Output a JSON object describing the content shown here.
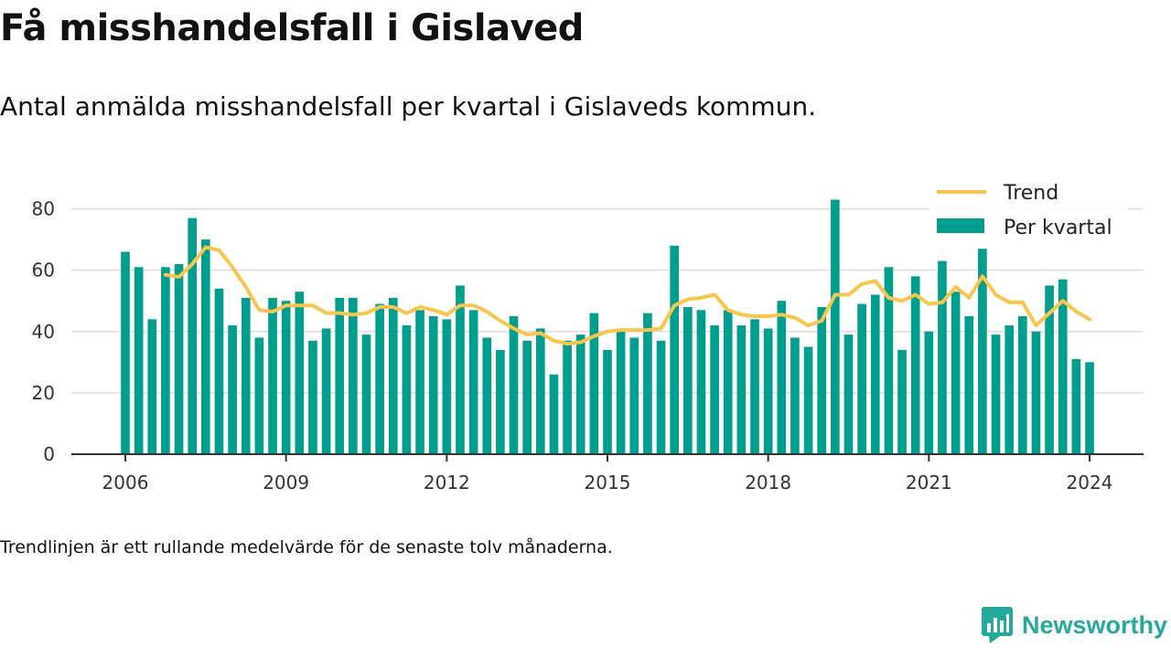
{
  "title": "Få misshandelsfall i Gislaved",
  "subtitle": "Antal anmälda misshandelsfall per kvartal i Gislaveds kommun.",
  "footnote": "Trendlinjen är ett rullande medelvärde för de senaste tolv månaderna.",
  "brand": {
    "name": "Newsworthy",
    "icon": "newsworthy-logo-icon"
  },
  "colors": {
    "bars": "#009e8f",
    "trend": "#f9c54e",
    "axis": "#333333",
    "grid": "#dddddd",
    "brand": "#25a99c"
  },
  "chart_data": {
    "type": "bar",
    "title": "",
    "xlabel": "",
    "ylabel": "",
    "ylim": [
      0,
      90
    ],
    "y_ticks": [
      "0",
      "20",
      "40",
      "60",
      "80"
    ],
    "x_ticks": [
      "2006",
      "2009",
      "2012",
      "2015",
      "2018",
      "2021",
      "2024"
    ],
    "x_range": [
      "2006-Q1",
      "2024-Q1"
    ],
    "grid": true,
    "legend_position": "top-right",
    "x": [
      "2006-Q1",
      "2006-Q2",
      "2006-Q3",
      "2006-Q4",
      "2007-Q1",
      "2007-Q2",
      "2007-Q3",
      "2007-Q4",
      "2008-Q1",
      "2008-Q2",
      "2008-Q3",
      "2008-Q4",
      "2009-Q1",
      "2009-Q2",
      "2009-Q3",
      "2009-Q4",
      "2010-Q1",
      "2010-Q2",
      "2010-Q3",
      "2010-Q4",
      "2011-Q1",
      "2011-Q2",
      "2011-Q3",
      "2011-Q4",
      "2012-Q1",
      "2012-Q2",
      "2012-Q3",
      "2012-Q4",
      "2013-Q1",
      "2013-Q2",
      "2013-Q3",
      "2013-Q4",
      "2014-Q1",
      "2014-Q2",
      "2014-Q3",
      "2014-Q4",
      "2015-Q1",
      "2015-Q2",
      "2015-Q3",
      "2015-Q4",
      "2016-Q1",
      "2016-Q2",
      "2016-Q3",
      "2016-Q4",
      "2017-Q1",
      "2017-Q2",
      "2017-Q3",
      "2017-Q4",
      "2018-Q1",
      "2018-Q2",
      "2018-Q3",
      "2018-Q4",
      "2019-Q1",
      "2019-Q2",
      "2019-Q3",
      "2019-Q4",
      "2020-Q1",
      "2020-Q2",
      "2020-Q3",
      "2020-Q4",
      "2021-Q1",
      "2021-Q2",
      "2021-Q3",
      "2021-Q4",
      "2022-Q1",
      "2022-Q2",
      "2022-Q3",
      "2022-Q4",
      "2023-Q1",
      "2023-Q2",
      "2023-Q3",
      "2023-Q4",
      "2024-Q1"
    ],
    "series": [
      {
        "name": "Per kvartal",
        "type": "bar",
        "values": [
          66,
          61,
          44,
          61,
          62,
          77,
          70,
          54,
          42,
          51,
          38,
          51,
          50,
          53,
          37,
          41,
          51,
          51,
          39,
          49,
          51,
          42,
          47,
          45,
          44,
          55,
          47,
          38,
          34,
          45,
          37,
          41,
          26,
          37,
          39,
          46,
          34,
          40,
          38,
          46,
          37,
          68,
          48,
          47,
          42,
          47,
          42,
          44,
          41,
          50,
          38,
          35,
          48,
          83,
          39,
          49,
          52,
          61,
          34,
          58,
          40,
          63,
          53,
          45,
          67,
          39,
          42,
          45,
          40,
          55,
          57,
          31,
          30
        ]
      },
      {
        "name": "Trend",
        "type": "line",
        "values": [
          null,
          null,
          null,
          58.5,
          57.8,
          62.0,
          67.5,
          66.5,
          61.0,
          54.5,
          47.0,
          46.5,
          48.5,
          48.5,
          48.5,
          46.0,
          46.0,
          45.5,
          46.0,
          48.0,
          48.0,
          46.0,
          48.0,
          47.0,
          45.5,
          48.5,
          48.5,
          46.5,
          43.5,
          41.0,
          39.0,
          39.5,
          37.0,
          36.0,
          36.5,
          38.5,
          40.0,
          40.5,
          40.5,
          40.5,
          41.0,
          48.5,
          50.5,
          51.0,
          52.0,
          47.0,
          45.5,
          45.0,
          45.0,
          45.5,
          44.5,
          42.0,
          43.5,
          52.0,
          52.0,
          55.5,
          56.5,
          51.0,
          50.0,
          52.0,
          49.0,
          49.5,
          54.5,
          51.0,
          58.0,
          52.0,
          49.5,
          49.5,
          42.0,
          46.0,
          50.0,
          46.5,
          44.0
        ]
      }
    ]
  }
}
